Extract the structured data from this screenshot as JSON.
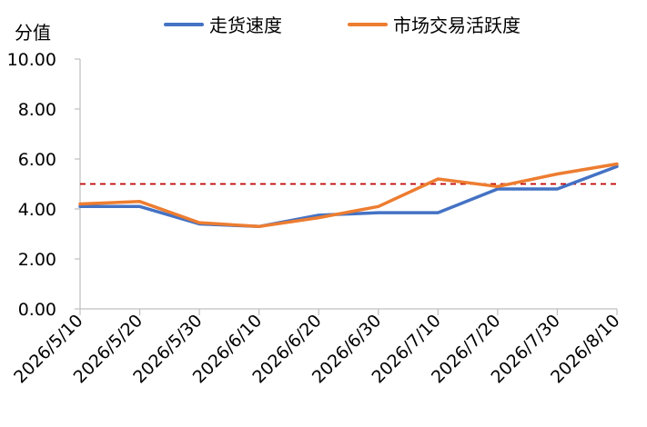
{
  "chart_data": {
    "type": "line",
    "title": "",
    "ylabel": "分值",
    "xlabel": "",
    "x": [
      "2026/5/10",
      "2026/5/20",
      "2026/5/30",
      "2026/6/10",
      "2026/6/20",
      "2026/6/30",
      "2026/7/10",
      "2026/7/20",
      "2026/7/30",
      "2026/8/10"
    ],
    "ylim": [
      0,
      10
    ],
    "ytick_labels": [
      "0.00",
      "2.00",
      "4.00",
      "6.00",
      "8.00",
      "10.00"
    ],
    "reference_line": {
      "y": 5.0,
      "color": "#C00000",
      "style": "dashed"
    },
    "series": [
      {
        "name": "走货速度",
        "color": "#4472C4",
        "values": [
          4.1,
          4.1,
          3.4,
          3.3,
          3.75,
          3.85,
          3.85,
          4.8,
          4.8,
          5.7
        ]
      },
      {
        "name": "市场交易活跃度",
        "color": "#ED7D31",
        "values": [
          4.2,
          4.3,
          3.45,
          3.3,
          3.65,
          4.1,
          5.2,
          4.9,
          5.4,
          5.8
        ]
      }
    ],
    "legend_position": "top",
    "grid": false
  }
}
